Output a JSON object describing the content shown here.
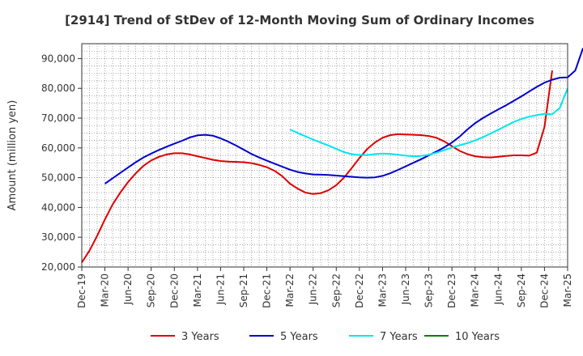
{
  "chart_data": {
    "type": "line",
    "title": "[2914]  Trend of StDev of 12-Month Moving Sum of Ordinary Incomes",
    "xlabel": "",
    "ylabel": "Amount (million yen)",
    "ylim": [
      20000,
      95000
    ],
    "yticks": [
      20000,
      30000,
      40000,
      50000,
      60000,
      70000,
      80000,
      90000
    ],
    "ytick_labels": [
      "20,000",
      "30,000",
      "40,000",
      "50,000",
      "60,000",
      "70,000",
      "80,000",
      "90,000"
    ],
    "xticks": [
      "Dec-19",
      "Mar-20",
      "Jun-20",
      "Sep-20",
      "Dec-20",
      "Mar-21",
      "Jun-21",
      "Sep-21",
      "Dec-21",
      "Mar-22",
      "Jun-22",
      "Sep-22",
      "Dec-22",
      "Mar-23",
      "Jun-23",
      "Sep-23",
      "Dec-23",
      "Mar-24",
      "Jun-24",
      "Sep-24",
      "Dec-24",
      "Mar-25"
    ],
    "grid": true,
    "legend_position": "bottom",
    "series": [
      {
        "name": "3 Years",
        "color": "#dd0000",
        "values": [
          [
            0,
            21500
          ],
          [
            1,
            25500
          ],
          [
            2,
            30500
          ],
          [
            3,
            36000
          ],
          [
            4,
            41000
          ],
          [
            5,
            45000
          ],
          [
            6,
            48500
          ],
          [
            7,
            51500
          ],
          [
            8,
            54000
          ],
          [
            9,
            55800
          ],
          [
            10,
            57000
          ],
          [
            11,
            57800
          ],
          [
            12,
            58200
          ],
          [
            13,
            58200
          ],
          [
            14,
            57800
          ],
          [
            15,
            57200
          ],
          [
            16,
            56600
          ],
          [
            17,
            56000
          ],
          [
            18,
            55600
          ],
          [
            19,
            55400
          ],
          [
            20,
            55300
          ],
          [
            21,
            55200
          ],
          [
            22,
            54900
          ],
          [
            23,
            54300
          ],
          [
            24,
            53500
          ],
          [
            25,
            52300
          ],
          [
            26,
            50500
          ],
          [
            27,
            48000
          ],
          [
            28,
            46300
          ],
          [
            29,
            45000
          ],
          [
            30,
            44500
          ],
          [
            31,
            44800
          ],
          [
            32,
            45800
          ],
          [
            33,
            47500
          ],
          [
            34,
            50000
          ],
          [
            35,
            53200
          ],
          [
            36,
            56600
          ],
          [
            37,
            59600
          ],
          [
            38,
            61800
          ],
          [
            39,
            63400
          ],
          [
            40,
            64300
          ],
          [
            41,
            64600
          ],
          [
            42,
            64500
          ],
          [
            43,
            64400
          ],
          [
            44,
            64300
          ],
          [
            45,
            64000
          ],
          [
            46,
            63400
          ],
          [
            47,
            62200
          ],
          [
            48,
            60600
          ],
          [
            49,
            59000
          ],
          [
            50,
            57900
          ],
          [
            51,
            57200
          ],
          [
            52,
            56900
          ],
          [
            53,
            56800
          ],
          [
            54,
            57000
          ],
          [
            55,
            57300
          ],
          [
            56,
            57500
          ],
          [
            57,
            57500
          ],
          [
            58,
            57400
          ],
          [
            59,
            58400
          ],
          [
            60,
            67000
          ],
          [
            61,
            86000
          ]
        ]
      },
      {
        "name": "5 Years",
        "color": "#0000cc",
        "values": [
          [
            3,
            48000
          ],
          [
            4,
            49800
          ],
          [
            5,
            51600
          ],
          [
            6,
            53400
          ],
          [
            7,
            55200
          ],
          [
            8,
            56800
          ],
          [
            9,
            58100
          ],
          [
            10,
            59300
          ],
          [
            11,
            60400
          ],
          [
            12,
            61400
          ],
          [
            13,
            62400
          ],
          [
            14,
            63500
          ],
          [
            15,
            64200
          ],
          [
            16,
            64400
          ],
          [
            17,
            64100
          ],
          [
            18,
            63200
          ],
          [
            19,
            62100
          ],
          [
            20,
            60800
          ],
          [
            21,
            59400
          ],
          [
            22,
            58000
          ],
          [
            23,
            56800
          ],
          [
            24,
            55700
          ],
          [
            25,
            54700
          ],
          [
            26,
            53700
          ],
          [
            27,
            52700
          ],
          [
            28,
            51900
          ],
          [
            29,
            51400
          ],
          [
            30,
            51100
          ],
          [
            31,
            51000
          ],
          [
            32,
            50900
          ],
          [
            33,
            50700
          ],
          [
            34,
            50500
          ],
          [
            35,
            50300
          ],
          [
            36,
            50100
          ],
          [
            37,
            50000
          ],
          [
            38,
            50100
          ],
          [
            39,
            50600
          ],
          [
            40,
            51500
          ],
          [
            41,
            52600
          ],
          [
            42,
            53800
          ],
          [
            43,
            55000
          ],
          [
            44,
            56200
          ],
          [
            45,
            57500
          ],
          [
            46,
            58800
          ],
          [
            47,
            60200
          ],
          [
            48,
            61800
          ],
          [
            49,
            63800
          ],
          [
            50,
            66200
          ],
          [
            51,
            68300
          ],
          [
            52,
            70000
          ],
          [
            53,
            71500
          ],
          [
            54,
            72900
          ],
          [
            55,
            74300
          ],
          [
            56,
            75800
          ],
          [
            57,
            77300
          ],
          [
            58,
            78900
          ],
          [
            59,
            80500
          ],
          [
            60,
            81900
          ],
          [
            61,
            82900
          ],
          [
            62,
            83600
          ],
          [
            63,
            83700
          ],
          [
            64,
            86000
          ],
          [
            65,
            93500
          ]
        ]
      },
      {
        "name": "7 Years",
        "color": "#00e5ee",
        "values": [
          [
            27,
            66200
          ],
          [
            28,
            65000
          ],
          [
            29,
            63900
          ],
          [
            30,
            62800
          ],
          [
            31,
            61800
          ],
          [
            32,
            60800
          ],
          [
            33,
            59700
          ],
          [
            34,
            58600
          ],
          [
            35,
            57900
          ],
          [
            36,
            57600
          ],
          [
            37,
            57600
          ],
          [
            38,
            57900
          ],
          [
            39,
            58100
          ],
          [
            40,
            58000
          ],
          [
            41,
            57700
          ],
          [
            42,
            57400
          ],
          [
            43,
            57200
          ],
          [
            44,
            57300
          ],
          [
            45,
            57700
          ],
          [
            46,
            58400
          ],
          [
            47,
            59300
          ],
          [
            48,
            60100
          ],
          [
            49,
            60900
          ],
          [
            50,
            61600
          ],
          [
            51,
            62500
          ],
          [
            52,
            63600
          ],
          [
            53,
            64800
          ],
          [
            54,
            66100
          ],
          [
            55,
            67400
          ],
          [
            56,
            68700
          ],
          [
            57,
            69700
          ],
          [
            58,
            70500
          ],
          [
            59,
            71000
          ],
          [
            60,
            71400
          ],
          [
            61,
            71300
          ],
          [
            62,
            73500
          ],
          [
            63,
            80000
          ]
        ]
      },
      {
        "name": "10 Years",
        "color": "#008000",
        "values": []
      }
    ]
  }
}
